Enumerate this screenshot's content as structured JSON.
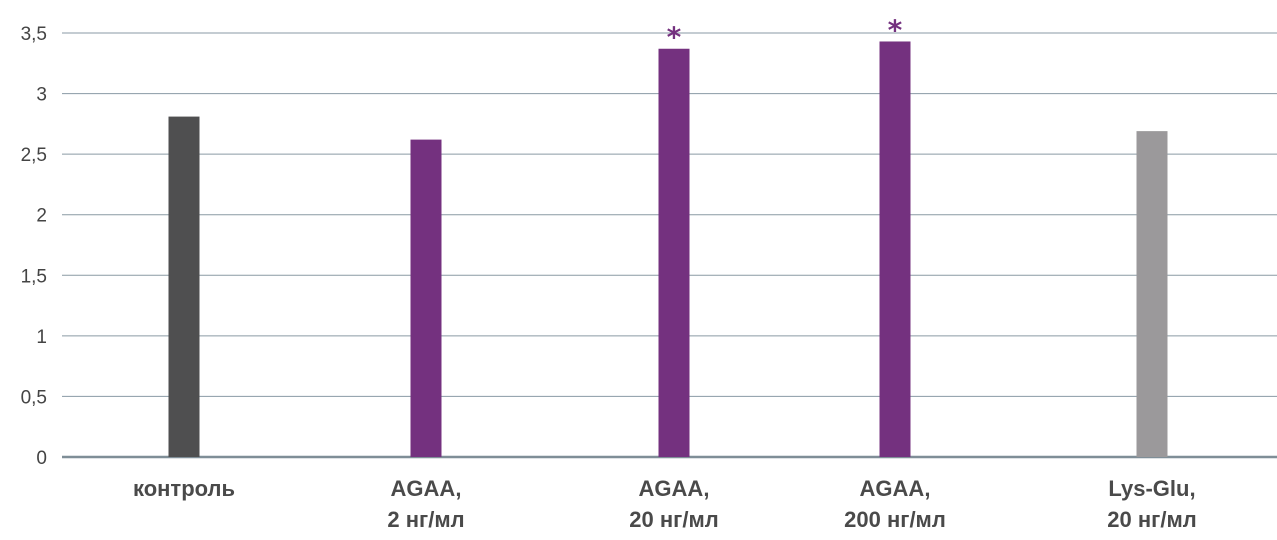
{
  "chart_data": {
    "type": "bar",
    "categories": [
      [
        "контроль"
      ],
      [
        "AGAA,",
        "2 нг/мл"
      ],
      [
        "AGAA,",
        "20 нг/мл"
      ],
      [
        "AGAA,",
        "200 нг/мл"
      ],
      [
        "Lys-Glu,",
        "20 нг/мл"
      ]
    ],
    "values": [
      2.81,
      2.62,
      3.37,
      3.43,
      2.69
    ],
    "bar_colors": [
      "#4f4f50",
      "#74317f",
      "#74317f",
      "#74317f",
      "#9b999b"
    ],
    "significance": [
      "",
      "",
      "*",
      "*",
      ""
    ],
    "yticks": [
      "0",
      "0,5",
      "1",
      "1,5",
      "2",
      "2,5",
      "3",
      "3,5"
    ],
    "ylim": [
      0,
      3.5
    ],
    "grid": true,
    "title": "",
    "xlabel": "",
    "ylabel": ""
  }
}
